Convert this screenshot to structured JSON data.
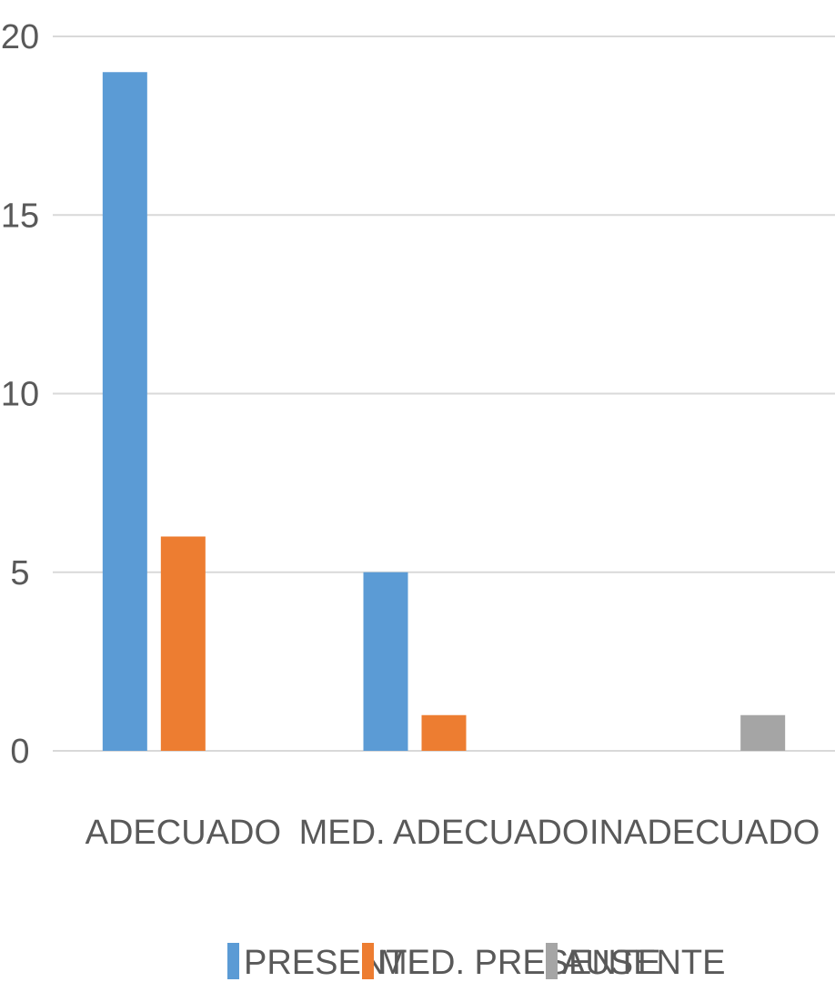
{
  "chart_data": {
    "type": "bar",
    "title": "",
    "xlabel": "",
    "ylabel": "",
    "categories": [
      "ADECUADO",
      "MED. ADECUADO",
      "INADECUADO"
    ],
    "series": [
      {
        "name": "PRESENTE",
        "values": [
          19,
          5,
          0
        ],
        "color": "#5B9BD5"
      },
      {
        "name": "MED. PRESENTE",
        "values": [
          6,
          1,
          0
        ],
        "color": "#ED7D31"
      },
      {
        "name": "AUSENTE",
        "values": [
          0,
          0,
          1
        ],
        "color": "#A5A5A5"
      }
    ],
    "ylim": [
      0,
      20
    ],
    "yticks": [
      0,
      5,
      10,
      15,
      20
    ],
    "grid": true,
    "legend_position": "bottom"
  }
}
